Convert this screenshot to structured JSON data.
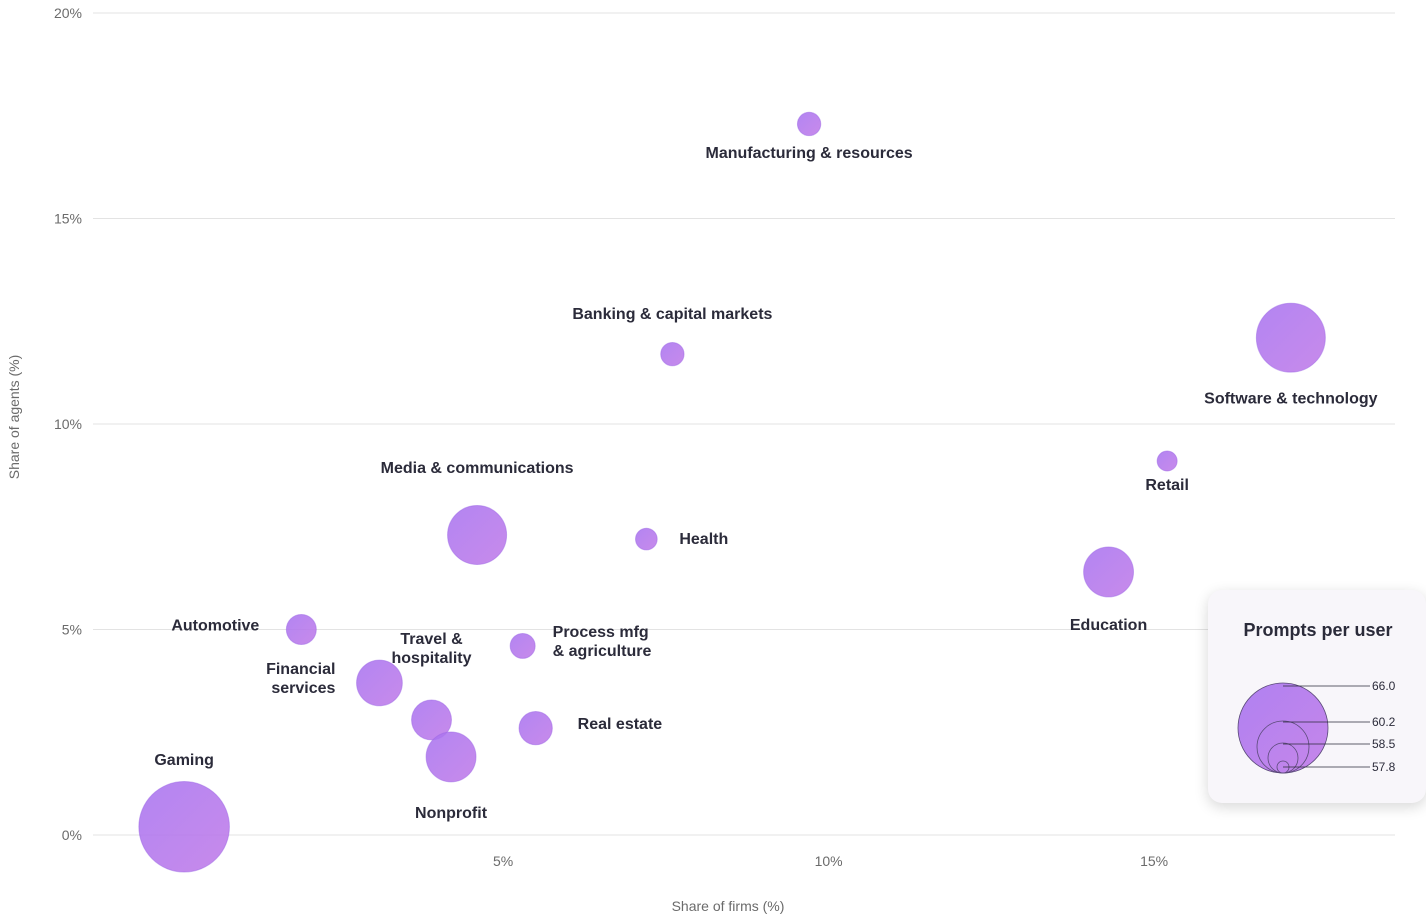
{
  "chart_data": {
    "type": "scatter",
    "subtype": "bubble",
    "xlabel": "Share of firms (%)",
    "ylabel": "Share of agents (%)",
    "xlim": [
      -1.3,
      18.7
    ],
    "ylim": [
      0,
      20
    ],
    "x_ticks": [
      5,
      10,
      15
    ],
    "x_tick_labels": [
      "5%",
      "10%",
      "15%"
    ],
    "y_ticks": [
      0,
      5,
      10,
      15,
      20
    ],
    "y_tick_labels": [
      "0%",
      "5%",
      "10%",
      "15%",
      "20%"
    ],
    "grid": "horizontal",
    "bubble_color": "#a874f0",
    "bubble_color_alt": "#c07ae8",
    "points": [
      {
        "label": "Manufacturing & resources",
        "x": 9.7,
        "y": 17.3,
        "size": 57.9
      },
      {
        "label": "Software & technology",
        "x": 17.1,
        "y": 12.1,
        "size": 63.4
      },
      {
        "label": "Banking & capital markets",
        "x": 7.6,
        "y": 11.7,
        "size": 57.9
      },
      {
        "label": "Retail",
        "x": 15.2,
        "y": 9.1,
        "size": 57.5
      },
      {
        "label": "Media & communications",
        "x": 4.6,
        "y": 7.3,
        "size": 62.2
      },
      {
        "label": "Health",
        "x": 7.2,
        "y": 7.2,
        "size": 57.7
      },
      {
        "label": "Education",
        "x": 14.3,
        "y": 6.4,
        "size": 61.1
      },
      {
        "label": "Automotive",
        "x": 1.9,
        "y": 5.0,
        "size": 58.7
      },
      {
        "label": "Process mfg\n& agriculture",
        "x": 5.3,
        "y": 4.6,
        "size": 58.1
      },
      {
        "label": "Financial\nservices",
        "x": 3.1,
        "y": 3.7,
        "size": 60.6
      },
      {
        "label": "Travel &\nhospitality",
        "x": 3.9,
        "y": 2.8,
        "size": 59.9
      },
      {
        "label": "Real estate",
        "x": 5.5,
        "y": 2.6,
        "size": 59.1
      },
      {
        "label": "Nonprofit",
        "x": 4.2,
        "y": 1.9,
        "size": 61.1
      },
      {
        "label": "Gaming",
        "x": 0.1,
        "y": 0.2,
        "size": 66.0
      }
    ]
  },
  "legend": {
    "title": "Prompts per user",
    "values": [
      "66.0",
      "60.2",
      "58.5",
      "57.8"
    ]
  }
}
